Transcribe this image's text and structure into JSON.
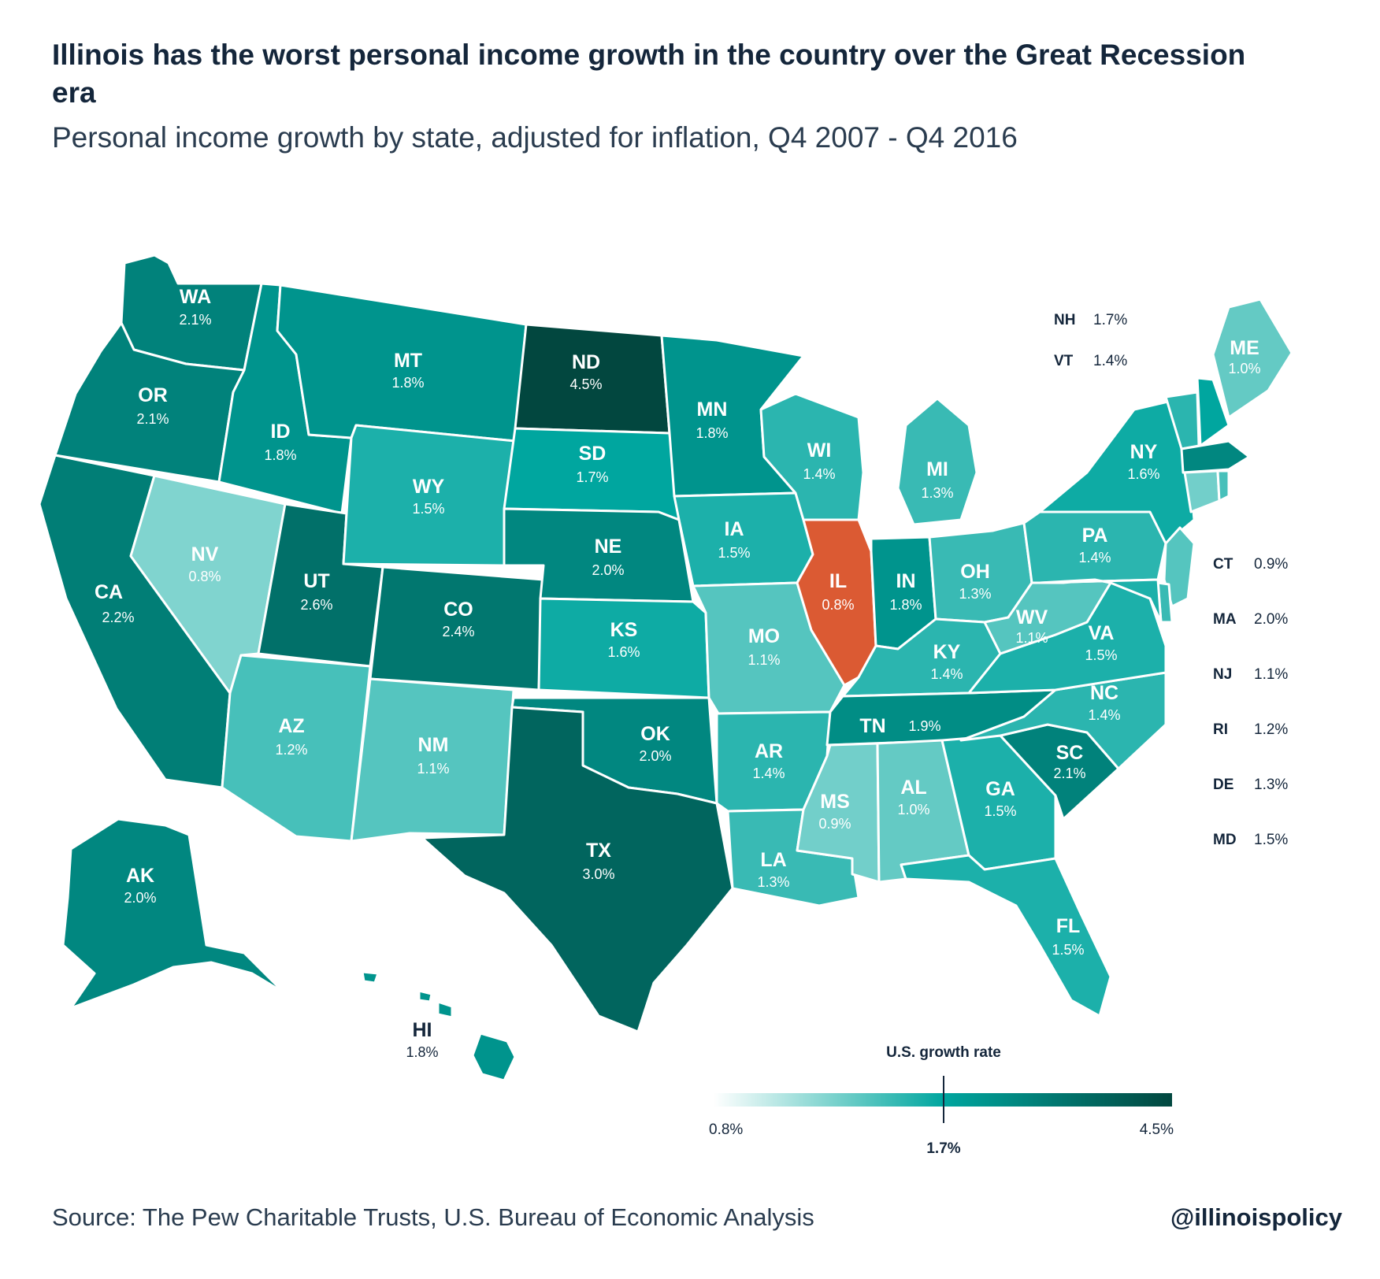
{
  "header": {
    "title": "Illinois has the worst personal income growth in the country over the Great Recession era",
    "subtitle": "Personal income growth by state, adjusted for inflation, Q4 2007 - Q4 2016"
  },
  "footer": {
    "source": "Source: The Pew Charitable Trusts, U.S. Bureau of Economic Analysis",
    "handle": "@illinoispolicy"
  },
  "legend": {
    "title": "U.S. growth rate",
    "min_label": "0.8%",
    "mid_label": "1.7%",
    "max_label": "4.5%",
    "min": 0.8,
    "mid": 1.7,
    "max": 4.5
  },
  "colors": {
    "scale_low": "#ffffff",
    "scale_light": "#80d4cf",
    "scale_mid": "#00a69f",
    "scale_dark": "#02473f",
    "highlight": "#db5a33",
    "text_dark": "#14263b"
  },
  "chart_data": {
    "type": "choropleth",
    "unit": "%",
    "highlight": "IL",
    "states": [
      {
        "abbr": "WA",
        "value": 2.1,
        "label": "2.1%"
      },
      {
        "abbr": "OR",
        "value": 2.1,
        "label": "2.1%"
      },
      {
        "abbr": "CA",
        "value": 2.2,
        "label": "2.2%"
      },
      {
        "abbr": "ID",
        "value": 1.8,
        "label": "1.8%"
      },
      {
        "abbr": "MT",
        "value": 1.8,
        "label": "1.8%"
      },
      {
        "abbr": "NV",
        "value": 0.8,
        "label": "0.8%"
      },
      {
        "abbr": "WY",
        "value": 1.5,
        "label": "1.5%"
      },
      {
        "abbr": "UT",
        "value": 2.6,
        "label": "2.6%"
      },
      {
        "abbr": "CO",
        "value": 2.4,
        "label": "2.4%"
      },
      {
        "abbr": "AZ",
        "value": 1.2,
        "label": "1.2%"
      },
      {
        "abbr": "NM",
        "value": 1.1,
        "label": "1.1%"
      },
      {
        "abbr": "ND",
        "value": 4.5,
        "label": "4.5%"
      },
      {
        "abbr": "SD",
        "value": 1.7,
        "label": "1.7%"
      },
      {
        "abbr": "NE",
        "value": 2.0,
        "label": "2.0%"
      },
      {
        "abbr": "KS",
        "value": 1.6,
        "label": "1.6%"
      },
      {
        "abbr": "OK",
        "value": 2.0,
        "label": "2.0%"
      },
      {
        "abbr": "TX",
        "value": 3.0,
        "label": "3.0%"
      },
      {
        "abbr": "MN",
        "value": 1.8,
        "label": "1.8%"
      },
      {
        "abbr": "IA",
        "value": 1.5,
        "label": "1.5%"
      },
      {
        "abbr": "MO",
        "value": 1.1,
        "label": "1.1%"
      },
      {
        "abbr": "AR",
        "value": 1.4,
        "label": "1.4%"
      },
      {
        "abbr": "LA",
        "value": 1.3,
        "label": "1.3%"
      },
      {
        "abbr": "WI",
        "value": 1.4,
        "label": "1.4%"
      },
      {
        "abbr": "IL",
        "value": 0.8,
        "label": "0.8%"
      },
      {
        "abbr": "MI",
        "value": 1.3,
        "label": "1.3%"
      },
      {
        "abbr": "IN",
        "value": 1.8,
        "label": "1.8%"
      },
      {
        "abbr": "OH",
        "value": 1.3,
        "label": "1.3%"
      },
      {
        "abbr": "KY",
        "value": 1.4,
        "label": "1.4%"
      },
      {
        "abbr": "TN",
        "value": 1.9,
        "label": "1.9%"
      },
      {
        "abbr": "MS",
        "value": 0.9,
        "label": "0.9%"
      },
      {
        "abbr": "AL",
        "value": 1.0,
        "label": "1.0%"
      },
      {
        "abbr": "GA",
        "value": 1.5,
        "label": "1.5%"
      },
      {
        "abbr": "FL",
        "value": 1.5,
        "label": "1.5%"
      },
      {
        "abbr": "SC",
        "value": 2.1,
        "label": "2.1%"
      },
      {
        "abbr": "NC",
        "value": 1.4,
        "label": "1.4%"
      },
      {
        "abbr": "VA",
        "value": 1.5,
        "label": "1.5%"
      },
      {
        "abbr": "WV",
        "value": 1.1,
        "label": "1.1%"
      },
      {
        "abbr": "PA",
        "value": 1.4,
        "label": "1.4%"
      },
      {
        "abbr": "NY",
        "value": 1.6,
        "label": "1.6%"
      },
      {
        "abbr": "ME",
        "value": 1.0,
        "label": "1.0%"
      },
      {
        "abbr": "AK",
        "value": 2.0,
        "label": "2.0%"
      },
      {
        "abbr": "HI",
        "value": 1.8,
        "label": "1.8%"
      },
      {
        "abbr": "NH",
        "value": 1.7,
        "label": "1.7%"
      },
      {
        "abbr": "VT",
        "value": 1.4,
        "label": "1.4%"
      },
      {
        "abbr": "CT",
        "value": 0.9,
        "label": "0.9%"
      },
      {
        "abbr": "MA",
        "value": 2.0,
        "label": "2.0%"
      },
      {
        "abbr": "NJ",
        "value": 1.1,
        "label": "1.1%"
      },
      {
        "abbr": "RI",
        "value": 1.2,
        "label": "1.2%"
      },
      {
        "abbr": "DE",
        "value": 1.3,
        "label": "1.3%"
      },
      {
        "abbr": "MD",
        "value": 1.5,
        "label": "1.5%"
      }
    ],
    "side_list_top": [
      "NH",
      "VT"
    ],
    "side_list_right": [
      "CT",
      "MA",
      "NJ",
      "RI",
      "DE",
      "MD"
    ]
  }
}
